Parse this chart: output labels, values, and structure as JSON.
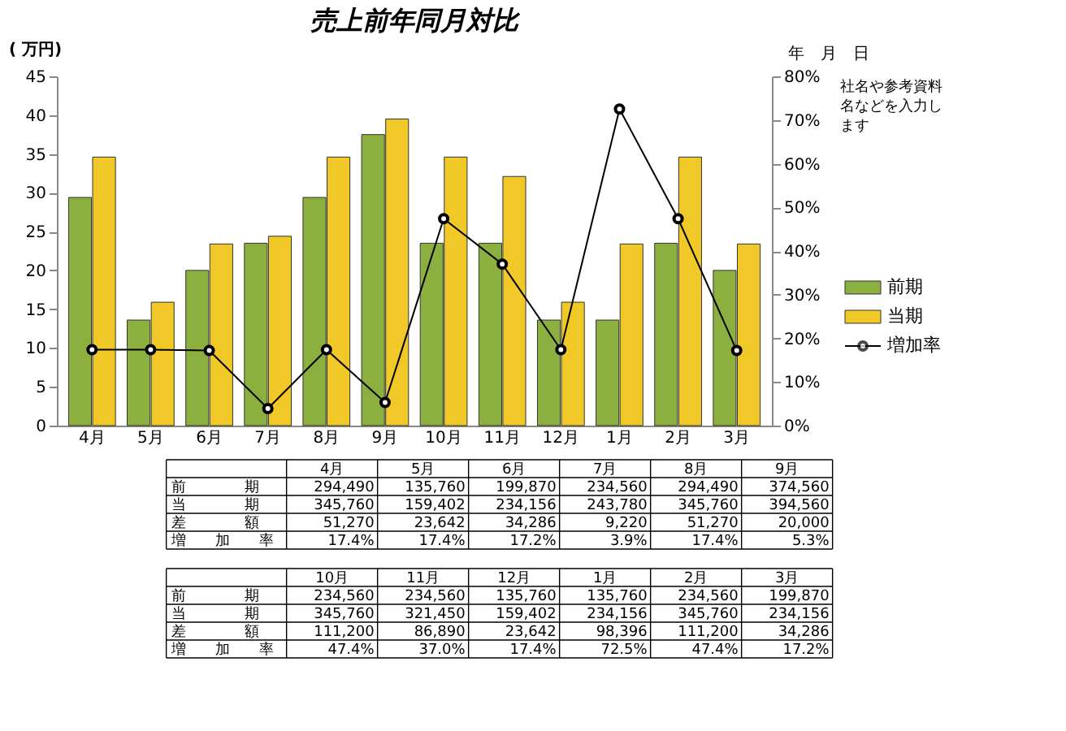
{
  "chart_data": {
    "type": "bar",
    "title": "売上前年同月対比",
    "ylabel": "( 万円)",
    "categories": [
      "4月",
      "5月",
      "6月",
      "7月",
      "8月",
      "9月",
      "10月",
      "11月",
      "12月",
      "1月",
      "2月",
      "3月"
    ],
    "series": [
      {
        "name": "前期",
        "color": "#8cb040",
        "values": [
          29.4,
          13.6,
          20.0,
          23.5,
          29.4,
          37.5,
          23.5,
          23.5,
          13.6,
          13.6,
          23.5,
          20.0
        ]
      },
      {
        "name": "当期",
        "color": "#f0c828",
        "values": [
          34.6,
          15.9,
          23.4,
          24.4,
          34.6,
          39.5,
          34.6,
          32.1,
          15.9,
          23.4,
          34.6,
          23.4
        ]
      },
      {
        "name": "増加率",
        "type": "line",
        "axis": "y2",
        "color": "#000000",
        "marker": "circle",
        "values": [
          17.4,
          17.4,
          17.2,
          3.9,
          17.4,
          5.3,
          47.4,
          37.0,
          17.4,
          72.5,
          47.4,
          17.2
        ]
      }
    ],
    "ylim": [
      0,
      45
    ],
    "yticks": [
      0,
      5,
      10,
      15,
      20,
      25,
      30,
      35,
      40,
      45
    ],
    "y2lim": [
      0,
      80
    ],
    "y2ticks": [
      {
        "value": 0,
        "label": "0%"
      },
      {
        "value": 10,
        "label": "10%"
      },
      {
        "value": 20,
        "label": "20%"
      },
      {
        "value": 30,
        "label": "30%"
      },
      {
        "value": 40,
        "label": "40%"
      },
      {
        "value": 50,
        "label": "50%"
      },
      {
        "value": 60,
        "label": "60%"
      },
      {
        "value": 70,
        "label": "70%"
      },
      {
        "value": 80,
        "label": "80%"
      }
    ],
    "legend": "right",
    "annotations": [
      "年　月　日",
      "社名や参考資料名などを入力します",
      "前　　　　期",
      "当　　　　期",
      "差　　　　額",
      "増　　加　　率",
      "294,490",
      "345,760",
      "51,270",
      "17.4%",
      "135,760",
      "159,402",
      "23,642",
      "17.4%",
      "199,870",
      "234,156",
      "34,286",
      "17.2%",
      "234,560",
      "243,780",
      "9,220",
      "3.9%",
      "294,490",
      "345,760",
      "51,270",
      "17.4%",
      "374,560",
      "394,560",
      "20,000",
      "5.3%",
      "234,560",
      "345,760",
      "111,200",
      "47.4%",
      "234,560",
      "321,450",
      "86,890",
      "37.0%",
      "135,760",
      "159,402",
      "23,642",
      "17.4%",
      "135,760",
      "234,156",
      "98,396",
      "72.5%",
      "234,560",
      "345,760",
      "111,200",
      "47.4%",
      "199,870",
      "234,156",
      "34,286",
      "17.2%"
    ]
  }
}
